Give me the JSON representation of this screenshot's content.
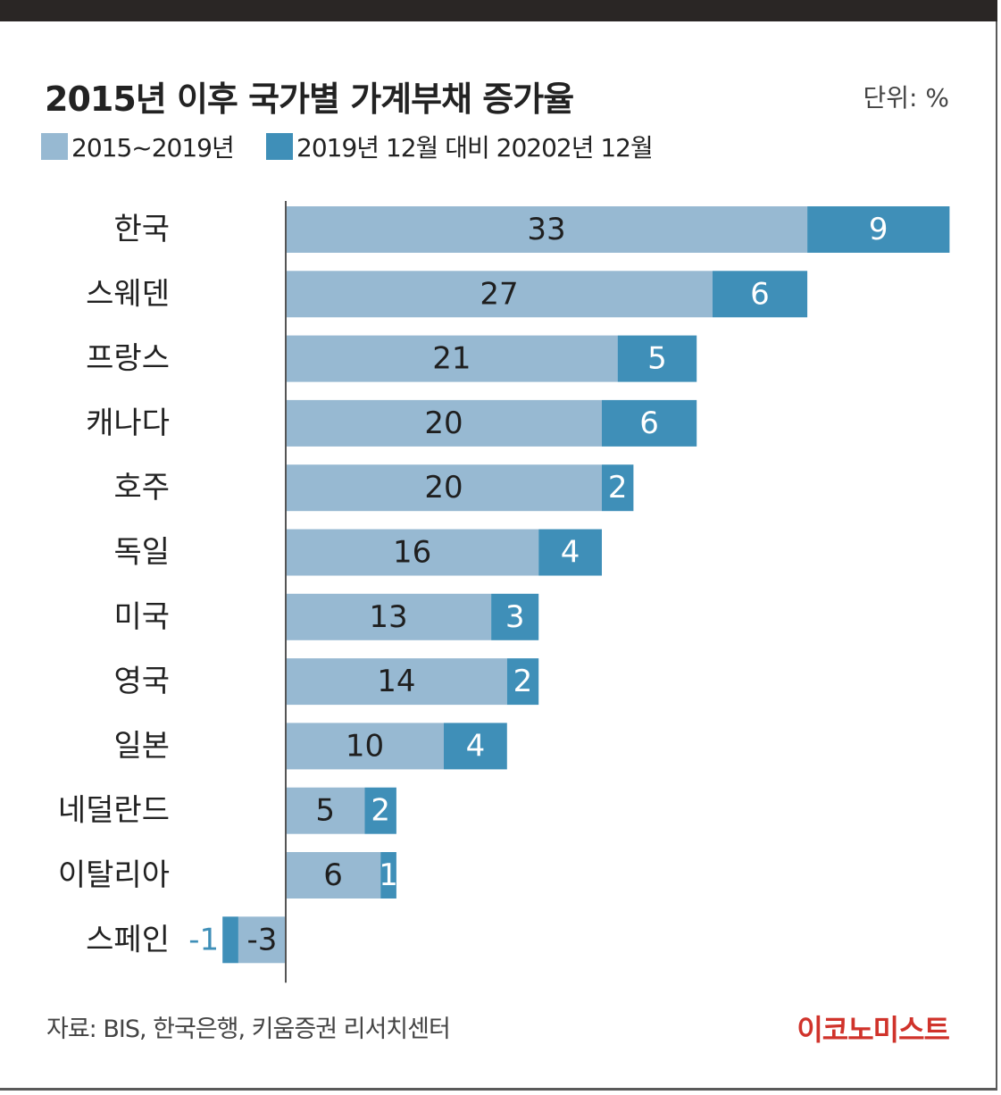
{
  "header": {
    "title": "2015년 이후 국가별 가계부채 증가율",
    "unit": "단위: %"
  },
  "legend": [
    {
      "label": "2015~2019년",
      "color": "#97b9d2"
    },
    {
      "label": "2019년 12월 대비 20202년 12월",
      "color": "#3f8fb8"
    }
  ],
  "footer": {
    "source": "자료: BIS, 한국은행, 키움증권 리서치센터",
    "brand": "이코노미스트"
  },
  "colors": {
    "series1": "#97b9d2",
    "series2": "#3f8fb8",
    "label_on_light": "#1f1f1f",
    "label_on_dark": "#ffffff",
    "negative_label": "#3f8fb8",
    "axis": "#555555"
  },
  "chart_data": {
    "type": "bar",
    "orientation": "horizontal",
    "stacked": true,
    "title": "2015년 이후 국가별 가계부채 증가율",
    "unit": "%",
    "categories": [
      "한국",
      "스웨덴",
      "프랑스",
      "캐나다",
      "호주",
      "독일",
      "미국",
      "영국",
      "일본",
      "네덜란드",
      "이탈리아",
      "스페인"
    ],
    "series": [
      {
        "name": "2015~2019년",
        "values": [
          33,
          27,
          21,
          20,
          20,
          16,
          13,
          14,
          10,
          5,
          6,
          -3
        ]
      },
      {
        "name": "2019년 12월 대비 20202년 12월",
        "values": [
          9,
          6,
          5,
          6,
          2,
          4,
          3,
          2,
          4,
          2,
          1,
          -1
        ]
      }
    ],
    "xlim": [
      -4,
      42
    ],
    "legend_position": "top-left"
  }
}
